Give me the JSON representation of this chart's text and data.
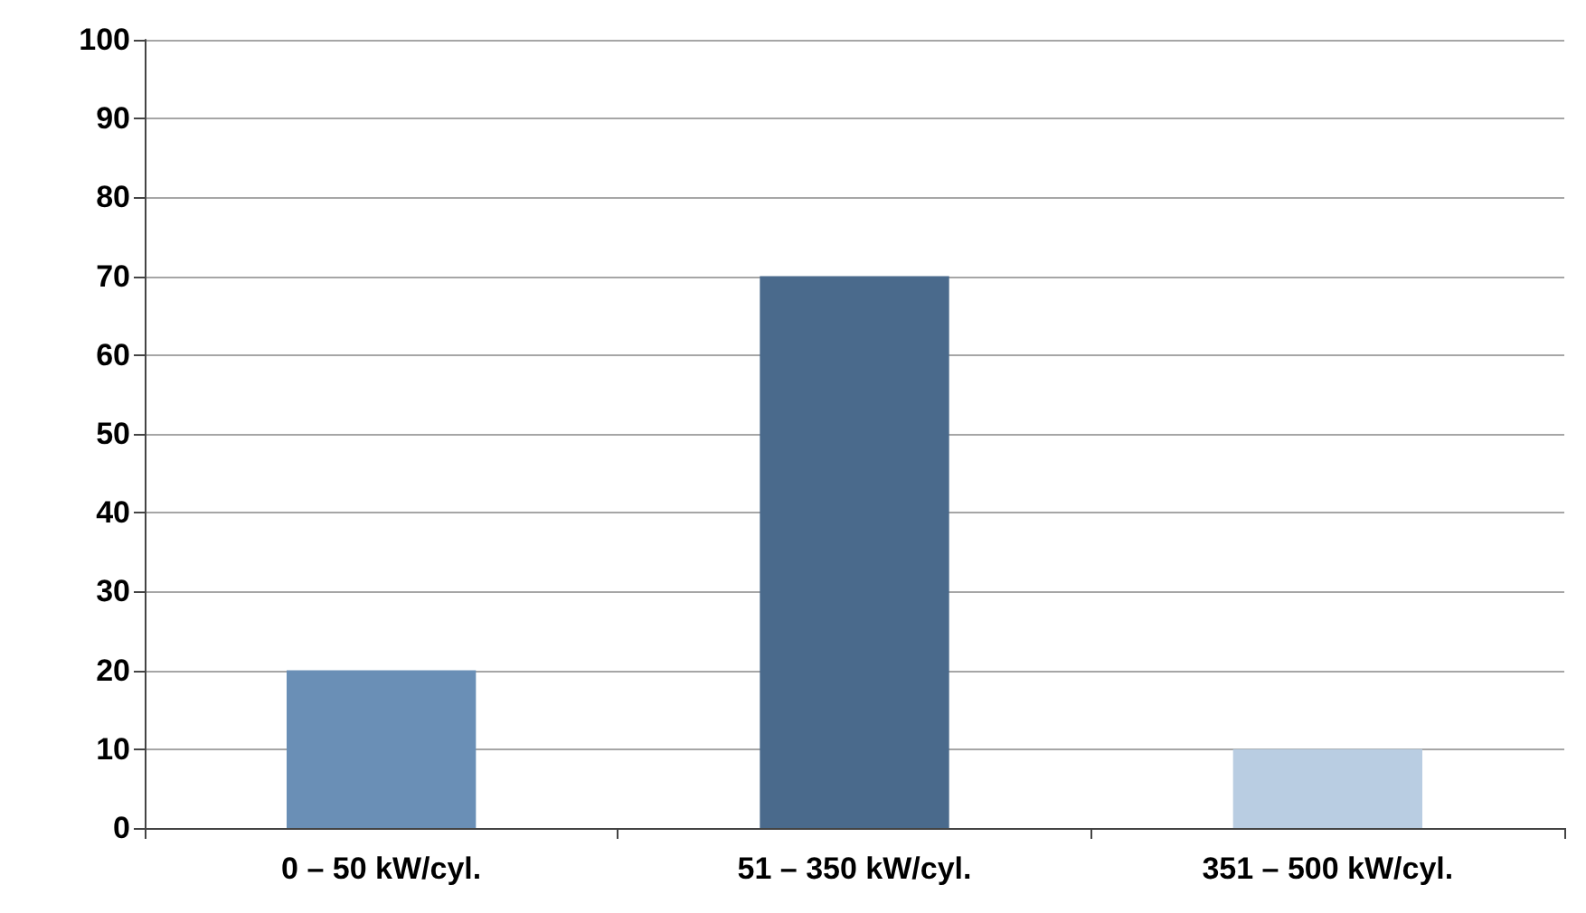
{
  "chart_data": {
    "type": "bar",
    "categories": [
      "0 – 50 kW/cyl.",
      "51 – 350 kW/cyl.",
      "351 – 500 kW/cyl."
    ],
    "values": [
      20,
      70,
      10
    ],
    "colors": [
      "#6a8fb6",
      "#4a6a8c",
      "#b9cde2"
    ],
    "ylim": [
      0,
      100
    ],
    "yticks": [
      0,
      10,
      20,
      30,
      40,
      50,
      60,
      70,
      80,
      90,
      100
    ],
    "grid": "y"
  }
}
